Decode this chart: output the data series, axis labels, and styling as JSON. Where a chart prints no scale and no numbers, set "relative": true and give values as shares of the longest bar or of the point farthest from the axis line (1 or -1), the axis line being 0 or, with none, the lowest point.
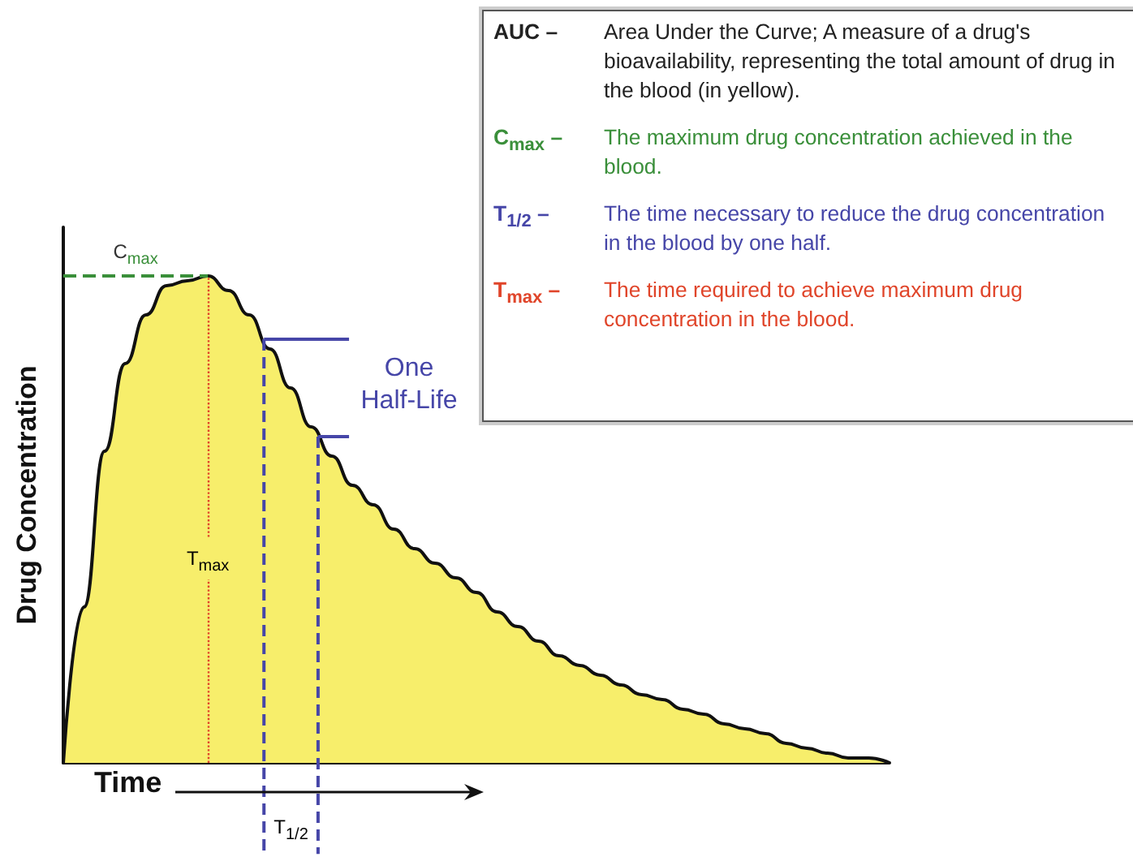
{
  "chart_data": {
    "type": "area",
    "relative": true,
    "xlabel": "Time",
    "ylabel": "Drug Concentration",
    "color": "#f7ee6b",
    "categories": [
      null,
      null,
      null,
      null,
      null,
      null,
      null,
      null,
      null,
      null,
      null,
      null,
      null,
      null,
      null,
      null,
      null,
      null,
      null,
      null,
      null,
      null,
      null,
      null,
      null,
      null,
      null,
      null,
      null,
      null,
      null,
      null,
      null,
      null,
      null,
      null,
      null,
      null,
      null,
      null,
      null
    ],
    "values": [
      0,
      0.32,
      0.64,
      0.82,
      0.92,
      0.98,
      0.99,
      1,
      0.97,
      0.92,
      0.85,
      0.77,
      0.69,
      0.63,
      0.57,
      0.53,
      0.48,
      0.44,
      0.41,
      0.38,
      0.35,
      0.31,
      0.28,
      0.25,
      0.22,
      0.2,
      0.18,
      0.16,
      0.14,
      0.13,
      0.11,
      0.1,
      0.08,
      0.07,
      0.06,
      0.04,
      0.03,
      0.02,
      0.01,
      0.01,
      0
    ],
    "ref_lines": [
      {
        "axis": "y",
        "value": 1,
        "label": "C$_{max}$",
        "color": "#3a8f3a",
        "line_style": "dashed"
      },
      {
        "axis": "y",
        "value": 0.87,
        "color": "#4646a8",
        "line_style": "solid"
      },
      {
        "axis": "y",
        "value": 0.67,
        "label": "One\nHalf-Life",
        "color": "#4646a8",
        "line_style": "solid"
      }
    ],
    "annotations": [
      "AUC – Area Under the Curve; A measure of a drug's bioavailability, representing the total amount of drug in the blood (in yellow).",
      "C$_{max}$ – The maximum drug concentration achieved in the blood.",
      "T$_{1/2}$ – The time necessary to reduce the drug concentration in the blood by one half.",
      "T$_{max}$ – The time required to achieve maximum drug concentration in the blood.",
      "T$_{max}$",
      "T$_{1/2}$"
    ]
  }
}
